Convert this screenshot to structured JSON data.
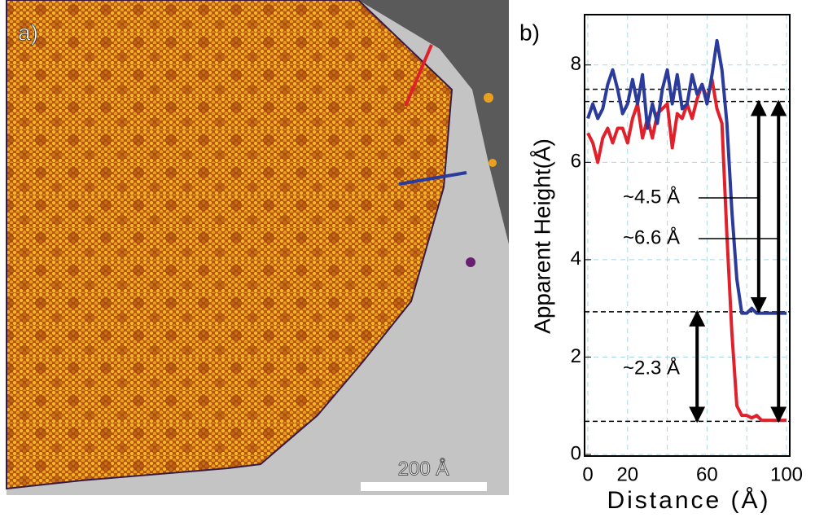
{
  "image_panel": {
    "label": "a)",
    "scale_bar": "200 Å"
  },
  "chart_data": {
    "type": "line",
    "panel_label": "b)",
    "x_label": "Distance (Å)",
    "y_label": "Apparent Height(Å)",
    "xlim": [
      0,
      100
    ],
    "ylim": [
      0,
      9
    ],
    "xticks": [
      0,
      20,
      {
        "value": 40,
        "label": null
      },
      60,
      {
        "value": 80,
        "label": null
      },
      100
    ],
    "yticks": [
      0,
      2,
      4,
      6,
      8
    ],
    "grid": true,
    "x": [
      0,
      2.5,
      5,
      7.5,
      10,
      12.5,
      15,
      17.5,
      20,
      22.5,
      25,
      27.5,
      30,
      32.5,
      35,
      37.5,
      40,
      42.5,
      45,
      47.5,
      50,
      52.5,
      55,
      57.5,
      60,
      62.5,
      65,
      67.5,
      70,
      72.5,
      75,
      77.5,
      80,
      82.5,
      85,
      87.5,
      90,
      92.5,
      95,
      97.5,
      100
    ],
    "series": [
      {
        "color": "#2b3b9c",
        "values": [
          6.9,
          7.2,
          6.9,
          7.1,
          7.6,
          7.9,
          7.5,
          7.0,
          7.2,
          7.7,
          7.2,
          7.8,
          6.7,
          7.2,
          6.8,
          7.5,
          7.9,
          7.2,
          7.8,
          7.1,
          7.2,
          7.8,
          7.4,
          7.6,
          7.2,
          7.8,
          8.5,
          7.9,
          6.8,
          5.0,
          3.6,
          2.9,
          2.9,
          3.0,
          2.9,
          2.9,
          2.9,
          2.9,
          2.9,
          2.9,
          2.9
        ]
      },
      {
        "color": "#e0202a",
        "values": [
          6.6,
          6.4,
          6.0,
          6.5,
          6.7,
          6.4,
          6.7,
          6.7,
          6.4,
          6.9,
          7.2,
          6.5,
          6.9,
          6.5,
          7.0,
          7.1,
          7.2,
          6.3,
          7.0,
          6.9,
          7.2,
          6.9,
          7.3,
          7.6,
          7.3,
          7.7,
          7.1,
          6.8,
          4.5,
          2.5,
          1.0,
          0.8,
          0.8,
          0.75,
          0.8,
          0.7,
          0.7,
          0.7,
          0.7,
          0.7,
          0.7
        ]
      }
    ],
    "reference_lines": [
      7.5,
      7.25,
      2.93,
      0.68
    ],
    "arrows": [
      {
        "label": "~4.5 Å",
        "x": 86,
        "from": 7.25,
        "to": 2.93
      },
      {
        "label": "~6.6 Å",
        "x": 96,
        "from": 7.25,
        "to": 0.68
      },
      {
        "label": "~2.3 Å",
        "x": 55,
        "from": 2.93,
        "to": 0.68
      }
    ]
  }
}
